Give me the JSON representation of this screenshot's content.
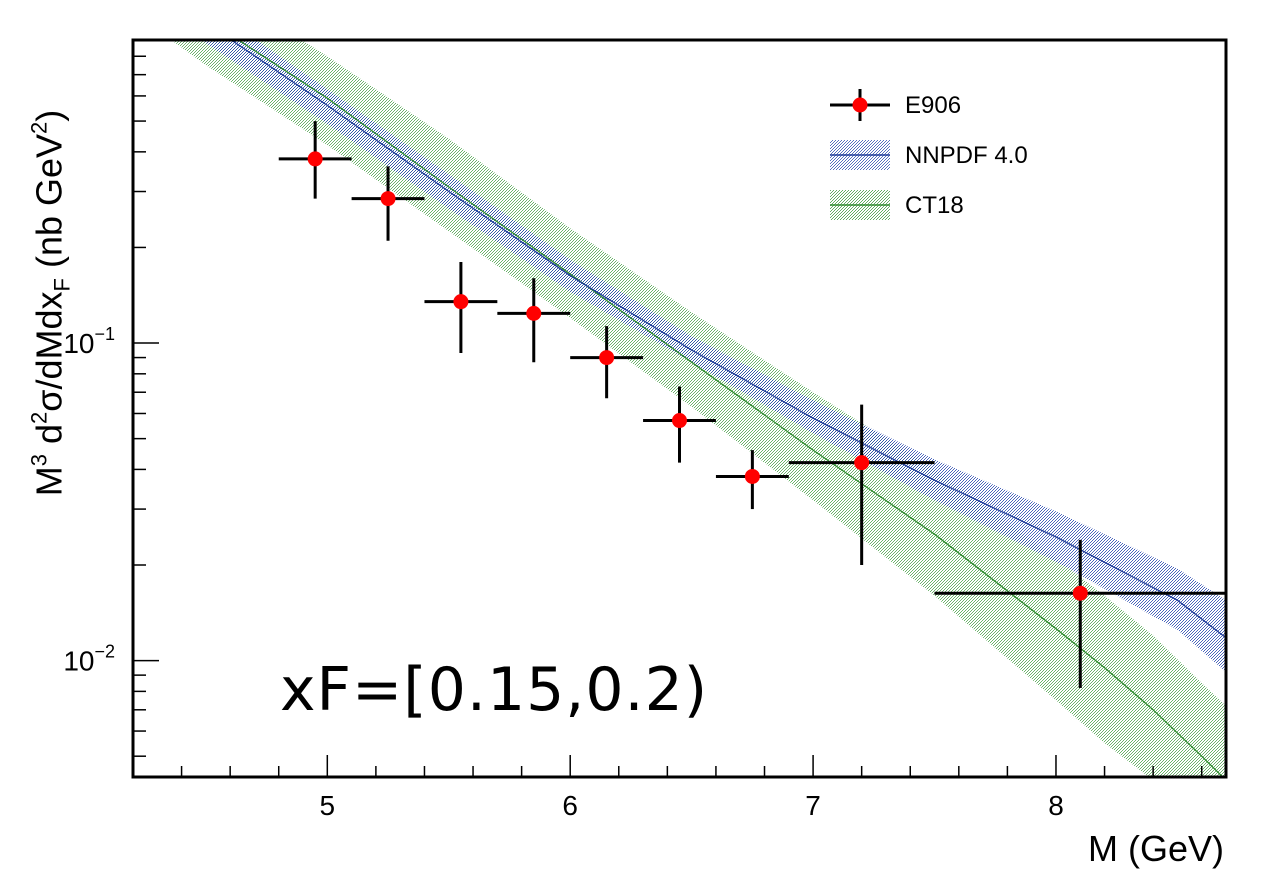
{
  "chart_data": {
    "type": "scatter",
    "ylabel_parts": {
      "a": "M",
      "b": "3",
      "c": " d",
      "d": "2",
      "e": "σ/dMdx",
      "f": "F",
      "g": " (nb GeV",
      "h": "2",
      "i": ")"
    },
    "xlabel": "M (GeV)",
    "annotation": "xF=[0.15,0.2)",
    "xlim": [
      4.2,
      8.7
    ],
    "ylim": [
      0.0043,
      0.9
    ],
    "yscale": "log",
    "x_ticks": [
      "5",
      "6",
      "7",
      "8"
    ],
    "y_ticks": [
      {
        "base": "10",
        "exp": "−1",
        "value": 0.1
      },
      {
        "base": "10",
        "exp": "−2",
        "value": 0.01
      }
    ],
    "legend": [
      {
        "label": "E906",
        "kind": "points",
        "color": "#ff0000"
      },
      {
        "label": "NNPDF 4.0",
        "kind": "band",
        "color": "#1f3c99"
      },
      {
        "label": "CT18",
        "kind": "band",
        "color": "#2e8b2e"
      }
    ],
    "series": [
      {
        "name": "E906",
        "points": [
          {
            "x": 4.95,
            "xlo": 4.8,
            "xhi": 5.1,
            "y": 0.38,
            "ylo": 0.285,
            "yhi": 0.5
          },
          {
            "x": 5.25,
            "xlo": 5.1,
            "xhi": 5.4,
            "y": 0.285,
            "ylo": 0.21,
            "yhi": 0.36
          },
          {
            "x": 5.55,
            "xlo": 5.4,
            "xhi": 5.7,
            "y": 0.135,
            "ylo": 0.093,
            "yhi": 0.18
          },
          {
            "x": 5.85,
            "xlo": 5.7,
            "xhi": 6.0,
            "y": 0.124,
            "ylo": 0.087,
            "yhi": 0.16
          },
          {
            "x": 6.15,
            "xlo": 6.0,
            "xhi": 6.3,
            "y": 0.09,
            "ylo": 0.067,
            "yhi": 0.113
          },
          {
            "x": 6.45,
            "xlo": 6.3,
            "xhi": 6.6,
            "y": 0.057,
            "ylo": 0.042,
            "yhi": 0.073
          },
          {
            "x": 6.75,
            "xlo": 6.6,
            "xhi": 6.9,
            "y": 0.038,
            "ylo": 0.03,
            "yhi": 0.046
          },
          {
            "x": 7.2,
            "xlo": 6.9,
            "xhi": 7.5,
            "y": 0.042,
            "ylo": 0.02,
            "yhi": 0.064
          },
          {
            "x": 8.1,
            "xlo": 7.5,
            "xhi": 8.7,
            "y": 0.0163,
            "ylo": 0.0082,
            "yhi": 0.024
          }
        ]
      },
      {
        "name": "NNPDF 4.0",
        "x": [
          4.2,
          4.5,
          5.0,
          5.5,
          6.0,
          6.5,
          7.0,
          7.5,
          8.0,
          8.5,
          8.7
        ],
        "central": [
          1.5,
          1.02,
          0.56,
          0.3,
          0.163,
          0.095,
          0.058,
          0.037,
          0.0245,
          0.0155,
          0.0118
        ],
        "low": [
          1.3,
          0.88,
          0.49,
          0.265,
          0.145,
          0.087,
          0.052,
          0.032,
          0.0205,
          0.0125,
          0.0092
        ],
        "high": [
          1.7,
          1.16,
          0.63,
          0.34,
          0.183,
          0.105,
          0.066,
          0.043,
          0.0295,
          0.0195,
          0.0155
        ]
      },
      {
        "name": "CT18",
        "x": [
          4.2,
          4.5,
          5.0,
          5.5,
          6.0,
          6.5,
          7.0,
          7.5,
          8.0,
          8.2,
          8.4,
          8.6,
          8.7
        ],
        "central": [
          1.55,
          1.05,
          0.59,
          0.31,
          0.165,
          0.087,
          0.046,
          0.025,
          0.0126,
          0.0095,
          0.007,
          0.005,
          0.0042
        ],
        "low": [
          1.1,
          0.75,
          0.42,
          0.225,
          0.12,
          0.063,
          0.032,
          0.016,
          0.0075,
          0.0055,
          0.0042,
          0.0035,
          0.0033
        ],
        "high": [
          2.0,
          1.4,
          0.8,
          0.44,
          0.23,
          0.125,
          0.07,
          0.04,
          0.021,
          0.016,
          0.012,
          0.0085,
          0.0072
        ]
      }
    ]
  }
}
